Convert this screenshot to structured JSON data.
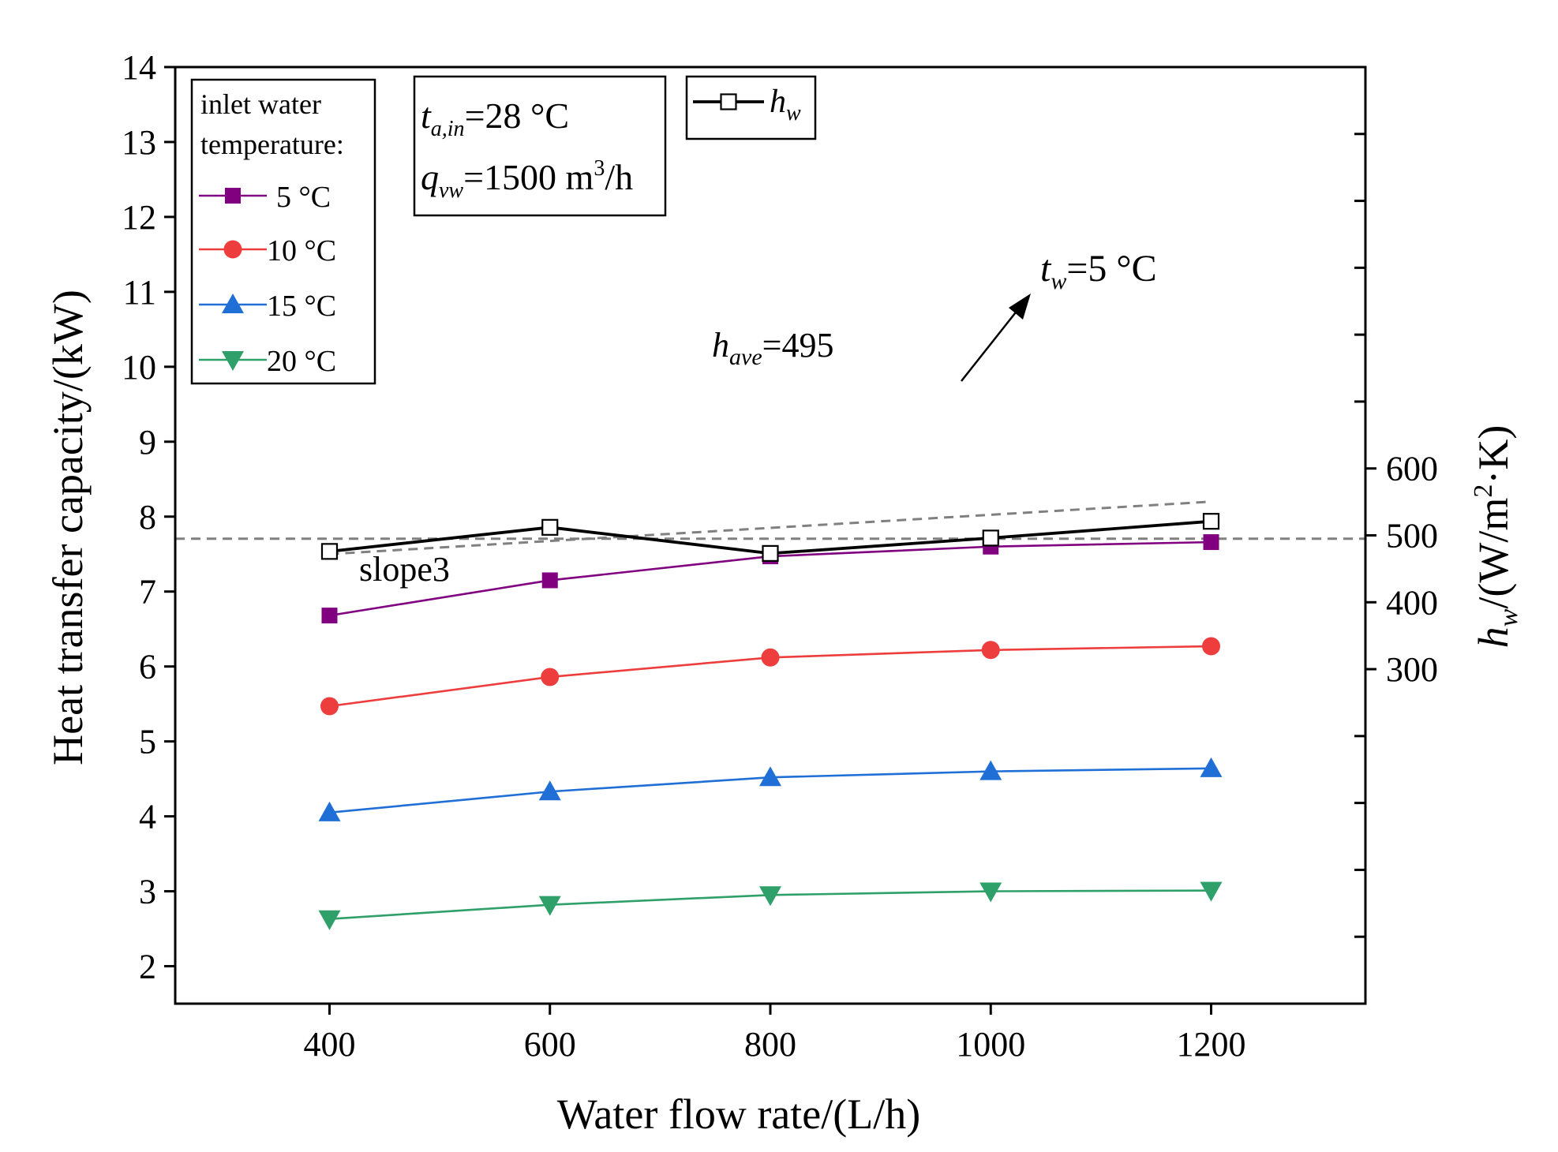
{
  "chart_data": {
    "type": "line",
    "xlabel": "Water flow rate/(L/h)",
    "ylabel": "Heat transfer capacity/(kW)",
    "y2label_parts": {
      "base": "h",
      "sub": "w",
      "mid": "/(W/m",
      "sup": "2",
      "end": "·K)"
    },
    "xlim": [
      260,
      1340
    ],
    "ylim": [
      1.5,
      14
    ],
    "y2lim": [
      -200,
      1200
    ],
    "xticks": [
      400,
      600,
      800,
      1000,
      1200
    ],
    "xtick_labels": [
      "400",
      "600",
      "800",
      "1000",
      "1200"
    ],
    "yticks": [
      2,
      3,
      4,
      5,
      6,
      7,
      8,
      9,
      10,
      11,
      12,
      13,
      14
    ],
    "ytick_labels": [
      "2",
      "3",
      "4",
      "5",
      "6",
      "7",
      "8",
      "9",
      "10",
      "11",
      "12",
      "13",
      "14"
    ],
    "y2ticks": [
      300,
      400,
      500,
      600
    ],
    "y2tick_labels": [
      "300",
      "400",
      "500",
      "600"
    ],
    "y2minor_ticks": [
      -100,
      0,
      100,
      200,
      700,
      800,
      900,
      1000,
      1100
    ],
    "x": [
      400,
      600,
      800,
      1000,
      1200
    ],
    "legend": {
      "title_lines": [
        "inlet water",
        "temperature:"
      ],
      "entries": [
        "5 °C",
        "10 °C",
        "15 °C",
        "20 °C"
      ],
      "position": "top-left"
    },
    "series": [
      {
        "name": "5 °C",
        "axis": "left",
        "marker": "square",
        "color": "#800080",
        "values": [
          6.68,
          7.15,
          7.47,
          7.6,
          7.66
        ]
      },
      {
        "name": "10 °C",
        "axis": "left",
        "marker": "circle",
        "color": "#ee3d3d",
        "values": [
          5.47,
          5.86,
          6.12,
          6.22,
          6.27
        ]
      },
      {
        "name": "15 °C",
        "axis": "left",
        "marker": "triangle-up",
        "color": "#1f6fd6",
        "values": [
          4.05,
          4.33,
          4.52,
          4.6,
          4.64
        ]
      },
      {
        "name": "20 °C",
        "axis": "left",
        "marker": "triangle-down",
        "color": "#2fa06a",
        "values": [
          2.63,
          2.82,
          2.95,
          3.0,
          3.01
        ]
      }
    ],
    "hw_series": {
      "axis": "right",
      "marker": "open-square",
      "color": "#000000",
      "legend_parts": {
        "base": "h",
        "sub": "w"
      },
      "values": [
        476,
        512,
        473,
        496,
        521
      ]
    },
    "reference_lines": {
      "average": {
        "axis": "right",
        "value": 495,
        "style": "dashed",
        "color": "#808080"
      },
      "slope": {
        "axis": "left",
        "x": [
          400,
          1200
        ],
        "y": [
          7.5,
          8.2
        ],
        "style": "dashed",
        "color": "#808080"
      }
    },
    "annotations": {
      "conditions": {
        "line1": {
          "base": "t",
          "sub": "a,in",
          "rest": "=28 °C"
        },
        "line2": {
          "base": "q",
          "sub": "vw",
          "rest1": "=1500 m",
          "sup": "3",
          "rest2": "/h"
        }
      },
      "have": {
        "base": "h",
        "sub": "ave",
        "rest": "=495"
      },
      "tw": {
        "base": "t",
        "sub": "w",
        "rest": "=5 °C"
      },
      "slope_label": "slope3"
    },
    "grid": false
  }
}
